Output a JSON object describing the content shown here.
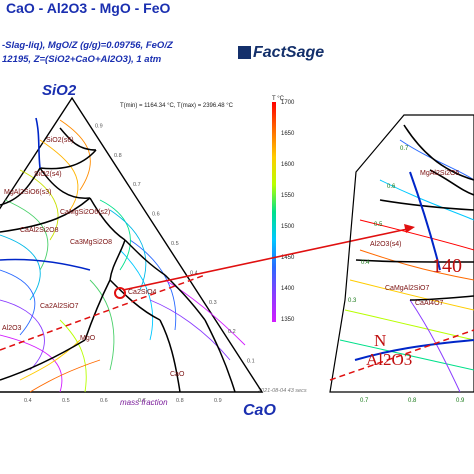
{
  "title": "CaO - Al2O3 - MgO - FeO",
  "subtitle_line1": "-Slag-liq), MgO/Z (g/g)=0.09756, FeO/Z",
  "subtitle_line2": "12195, Z=(SiO2+CaO+Al2O3), 1 atm",
  "logo_text": "FactSage",
  "apex_top": "SiO2",
  "apex_right": "CaO",
  "temp_range": "T(min) = 1164.34 °C, T(max) = 2396.48 °C",
  "colorbar_unit": "T °C",
  "colorbar_ticks": [
    "1700",
    "1650",
    "1600",
    "1550",
    "1500",
    "1450",
    "1400",
    "1350"
  ],
  "colorbar_colors": [
    "#ff0000",
    "#ff6a00",
    "#ffcc00",
    "#b8ff00",
    "#00e08a",
    "#00c8ff",
    "#2a6aff",
    "#8a3cff",
    "#d21cff"
  ],
  "footer_date": "2021-08-04 43 secs",
  "footer_axis": "mass fraction",
  "phase_labels": [
    "SiO2(s6)",
    "SiO2(s4)",
    "MgAl2SiO6(s3)",
    "CaMgSi2O6(s2)",
    "Ca3MgSi2O8",
    "CaAl2Si2O8",
    "Ca2Al2SiO7",
    "Ca2SiO4",
    "MgO",
    "CaO",
    "Al2O3"
  ],
  "tick_right_axis": [
    "0.9",
    "0.8",
    "0.7",
    "0.6",
    "0.5",
    "0.4",
    "0.3",
    "0.2",
    "0.1"
  ],
  "tick_bottom_axis": [
    "0.4",
    "0.5",
    "0.6",
    "0.7",
    "0.8",
    "0.9"
  ],
  "zoom": {
    "phase_labels": [
      "MgAl2Si2O5",
      "Al2O3(s4)",
      "CaMgAl2SiO7",
      "CaAl4O7"
    ],
    "big_temp_label": "140",
    "big_letter": "N",
    "big_phase": "Al2O3",
    "left_ticks": [
      "0.7",
      "0.6",
      "0.5",
      "0.4",
      "0.3"
    ],
    "bottom_ticks": [
      "0.7",
      "0.8",
      "0.9"
    ]
  }
}
